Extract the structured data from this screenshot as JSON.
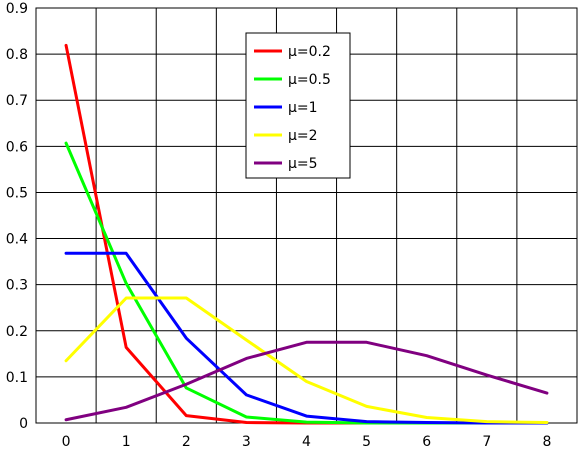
{
  "chart_data": {
    "type": "line",
    "x": [
      0,
      1,
      2,
      3,
      4,
      5,
      6,
      7,
      8
    ],
    "series": [
      {
        "name": "μ=0.2",
        "color": "#ff0000",
        "values": [
          0.819,
          0.164,
          0.016,
          0.001,
          0.0,
          0.0,
          0.0,
          0.0,
          0.0
        ]
      },
      {
        "name": "μ=0.5",
        "color": "#00ff00",
        "values": [
          0.607,
          0.303,
          0.076,
          0.013,
          0.002,
          0.0,
          0.0,
          0.0,
          0.0
        ]
      },
      {
        "name": "μ=1",
        "color": "#0000ff",
        "values": [
          0.368,
          0.368,
          0.184,
          0.061,
          0.015,
          0.003,
          0.001,
          0.0,
          0.0
        ]
      },
      {
        "name": "μ=2",
        "color": "#ffff00",
        "values": [
          0.135,
          0.271,
          0.271,
          0.18,
          0.09,
          0.036,
          0.012,
          0.003,
          0.001
        ]
      },
      {
        "name": "μ=5",
        "color": "#800080",
        "values": [
          0.007,
          0.034,
          0.084,
          0.14,
          0.175,
          0.175,
          0.146,
          0.104,
          0.065
        ]
      }
    ],
    "x_ticks": [
      "0",
      "1",
      "2",
      "3",
      "4",
      "5",
      "6",
      "7",
      "8"
    ],
    "y_ticks": [
      "0",
      "0.1",
      "0.2",
      "0.3",
      "0.4",
      "0.5",
      "0.6",
      "0.7",
      "0.8",
      "0.9"
    ],
    "xlim": [
      -0.5,
      8.5
    ],
    "ylim": [
      0,
      0.9
    ],
    "grid": true,
    "legend_placement": "top-center",
    "title": "",
    "xlabel": "",
    "ylabel": ""
  }
}
